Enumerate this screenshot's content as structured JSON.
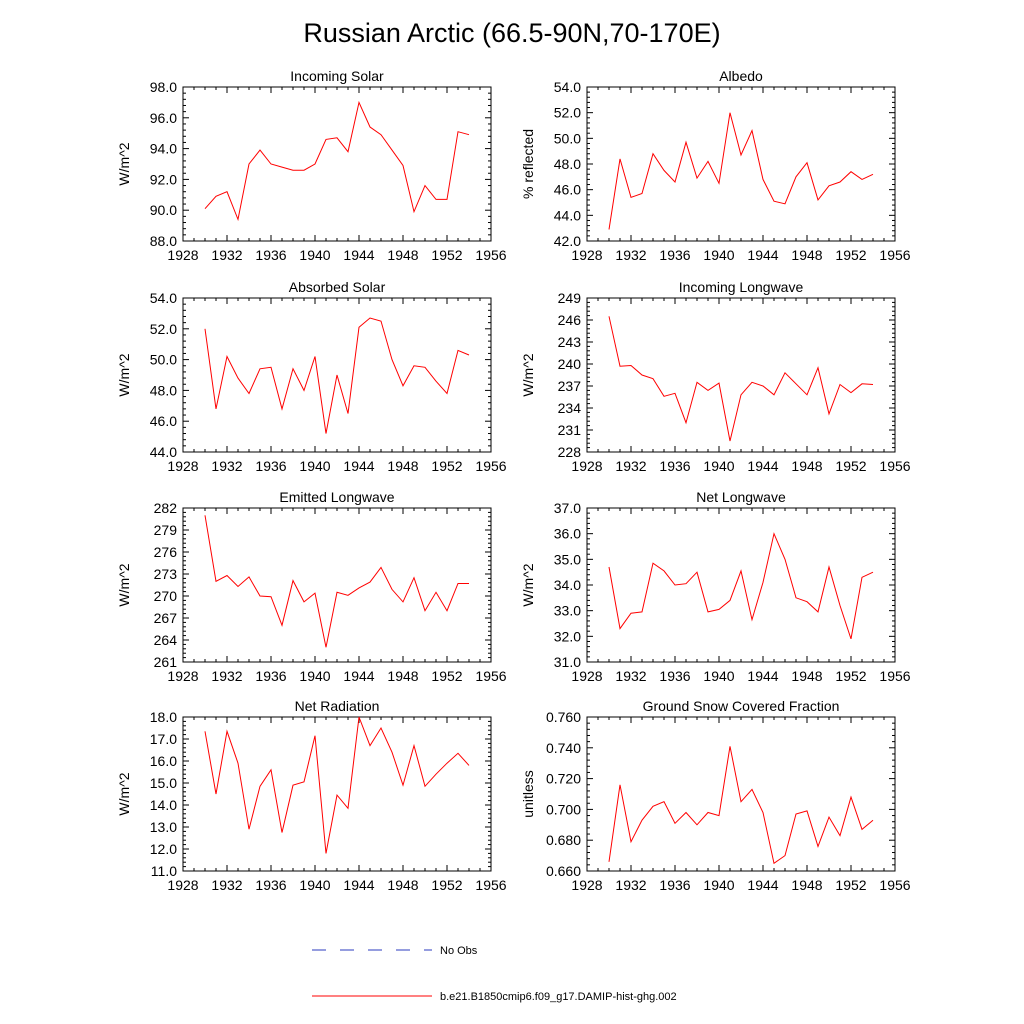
{
  "figure": {
    "title": "Russian Arctic (66.5-90N,70-170E)"
  },
  "legend": {
    "obs_label": "No Obs",
    "model_label": "b.e21.B1850cmip6.f09_g17.DAMIP-hist-ghg.002",
    "obs_color": "#2b3bbf",
    "model_color": "#ff0000"
  },
  "colors": {
    "line": "#ff0000",
    "axis": "#000000"
  },
  "chart_data": [
    {
      "type": "line",
      "title": "Incoming Solar",
      "ylabel": "W/m^2",
      "xlim": [
        1928,
        1956
      ],
      "ylim": [
        88,
        98
      ],
      "xticks": [
        1928,
        1932,
        1936,
        1940,
        1944,
        1948,
        1952,
        1956
      ],
      "yticks": [
        "88.0",
        "90.0",
        "92.0",
        "94.0",
        "96.0",
        "98.0"
      ],
      "series": [
        {
          "x": [
            1930,
            1931,
            1932,
            1933,
            1934,
            1935,
            1936,
            1937,
            1938,
            1939,
            1940,
            1941,
            1942,
            1943,
            1944,
            1945,
            1946,
            1947,
            1948,
            1949,
            1950,
            1951,
            1952,
            1953,
            1954
          ],
          "values": [
            90.1,
            90.9,
            91.2,
            89.4,
            93.0,
            93.9,
            93.0,
            92.8,
            92.6,
            92.6,
            93.0,
            94.6,
            94.7,
            93.8,
            97.0,
            95.4,
            94.9,
            93.9,
            92.9,
            89.9,
            91.6,
            90.7,
            90.7,
            95.1,
            94.9
          ]
        }
      ]
    },
    {
      "type": "line",
      "title": "Albedo",
      "ylabel": "% reflected",
      "xlim": [
        1928,
        1956
      ],
      "ylim": [
        42,
        54
      ],
      "xticks": [
        1928,
        1932,
        1936,
        1940,
        1944,
        1948,
        1952,
        1956
      ],
      "yticks": [
        "42.0",
        "44.0",
        "46.0",
        "48.0",
        "50.0",
        "52.0",
        "54.0"
      ],
      "series": [
        {
          "x": [
            1930,
            1931,
            1932,
            1933,
            1934,
            1935,
            1936,
            1937,
            1938,
            1939,
            1940,
            1941,
            1942,
            1943,
            1944,
            1945,
            1946,
            1947,
            1948,
            1949,
            1950,
            1951,
            1952,
            1953,
            1954
          ],
          "values": [
            42.9,
            48.4,
            45.4,
            45.7,
            48.8,
            47.5,
            46.6,
            49.7,
            46.9,
            48.2,
            46.5,
            52.0,
            48.7,
            50.6,
            46.8,
            45.1,
            44.9,
            47.0,
            48.1,
            45.2,
            46.3,
            46.6,
            47.4,
            46.8,
            47.2
          ]
        }
      ]
    },
    {
      "type": "line",
      "title": "Absorbed Solar",
      "ylabel": "W/m^2",
      "xlim": [
        1928,
        1956
      ],
      "ylim": [
        44,
        54
      ],
      "xticks": [
        1928,
        1932,
        1936,
        1940,
        1944,
        1948,
        1952,
        1956
      ],
      "yticks": [
        "44.0",
        "46.0",
        "48.0",
        "50.0",
        "52.0",
        "54.0"
      ],
      "series": [
        {
          "x": [
            1930,
            1931,
            1932,
            1933,
            1934,
            1935,
            1936,
            1937,
            1938,
            1939,
            1940,
            1941,
            1942,
            1943,
            1944,
            1945,
            1946,
            1947,
            1948,
            1949,
            1950,
            1951,
            1952,
            1953,
            1954
          ],
          "values": [
            52.0,
            46.8,
            50.2,
            48.8,
            47.8,
            49.4,
            49.5,
            46.8,
            49.4,
            48.0,
            50.2,
            45.2,
            49.0,
            46.5,
            52.1,
            52.7,
            52.5,
            50.0,
            48.3,
            49.6,
            49.5,
            48.6,
            47.8,
            50.6,
            50.3
          ]
        }
      ]
    },
    {
      "type": "line",
      "title": "Incoming Longwave",
      "ylabel": "W/m^2",
      "xlim": [
        1928,
        1956
      ],
      "ylim": [
        228,
        249
      ],
      "xticks": [
        1928,
        1932,
        1936,
        1940,
        1944,
        1948,
        1952,
        1956
      ],
      "yticks": [
        "228",
        "231",
        "234",
        "237",
        "240",
        "243",
        "246",
        "249"
      ],
      "series": [
        {
          "x": [
            1930,
            1931,
            1932,
            1933,
            1934,
            1935,
            1936,
            1937,
            1938,
            1939,
            1940,
            1941,
            1942,
            1943,
            1944,
            1945,
            1946,
            1947,
            1948,
            1949,
            1950,
            1951,
            1952,
            1953,
            1954
          ],
          "values": [
            246.5,
            239.7,
            239.8,
            238.5,
            238.0,
            235.6,
            236.0,
            232.0,
            237.5,
            236.4,
            237.4,
            229.5,
            235.8,
            237.5,
            237.0,
            235.8,
            238.8,
            237.3,
            235.8,
            239.5,
            233.2,
            237.2,
            236.1,
            237.3,
            237.2
          ]
        }
      ]
    },
    {
      "type": "line",
      "title": "Emitted Longwave",
      "ylabel": "W/m^2",
      "xlim": [
        1928,
        1956
      ],
      "ylim": [
        261,
        282
      ],
      "xticks": [
        1928,
        1932,
        1936,
        1940,
        1944,
        1948,
        1952,
        1956
      ],
      "yticks": [
        "261",
        "264",
        "267",
        "270",
        "273",
        "276",
        "279",
        "282"
      ],
      "series": [
        {
          "x": [
            1930,
            1931,
            1932,
            1933,
            1934,
            1935,
            1936,
            1937,
            1938,
            1939,
            1940,
            1941,
            1942,
            1943,
            1944,
            1945,
            1946,
            1947,
            1948,
            1949,
            1950,
            1951,
            1952,
            1953,
            1954
          ],
          "values": [
            281.0,
            272.0,
            272.8,
            271.3,
            272.6,
            270.0,
            269.9,
            266.0,
            272.1,
            269.2,
            270.4,
            263.0,
            270.5,
            270.1,
            271.1,
            271.9,
            273.9,
            270.9,
            269.2,
            272.5,
            268.0,
            270.5,
            268.0,
            271.7,
            271.7
          ]
        }
      ]
    },
    {
      "type": "line",
      "title": "Net Longwave",
      "ylabel": "W/m^2",
      "xlim": [
        1928,
        1956
      ],
      "ylim": [
        31,
        37
      ],
      "xticks": [
        1928,
        1932,
        1936,
        1940,
        1944,
        1948,
        1952,
        1956
      ],
      "yticks": [
        "31.0",
        "32.0",
        "33.0",
        "34.0",
        "35.0",
        "36.0",
        "37.0"
      ],
      "series": [
        {
          "x": [
            1930,
            1931,
            1932,
            1933,
            1934,
            1935,
            1936,
            1937,
            1938,
            1939,
            1940,
            1941,
            1942,
            1943,
            1944,
            1945,
            1946,
            1947,
            1948,
            1949,
            1950,
            1951,
            1952,
            1953,
            1954
          ],
          "values": [
            34.7,
            32.3,
            32.9,
            32.95,
            34.85,
            34.55,
            34.0,
            34.05,
            34.5,
            32.95,
            33.05,
            33.4,
            34.55,
            32.65,
            34.1,
            36.0,
            35.0,
            33.5,
            33.35,
            32.95,
            34.7,
            33.2,
            31.9,
            34.3,
            34.5
          ]
        }
      ]
    },
    {
      "type": "line",
      "title": "Net Radiation",
      "ylabel": "W/m^2",
      "xlim": [
        1928,
        1956
      ],
      "ylim": [
        11,
        18
      ],
      "xticks": [
        1928,
        1932,
        1936,
        1940,
        1944,
        1948,
        1952,
        1956
      ],
      "yticks": [
        "11.0",
        "12.0",
        "13.0",
        "14.0",
        "15.0",
        "16.0",
        "17.0",
        "18.0"
      ],
      "series": [
        {
          "x": [
            1930,
            1931,
            1932,
            1933,
            1934,
            1935,
            1936,
            1937,
            1938,
            1939,
            1940,
            1941,
            1942,
            1943,
            1944,
            1945,
            1946,
            1947,
            1948,
            1949,
            1950,
            1951,
            1952,
            1953,
            1954
          ],
          "values": [
            17.35,
            14.5,
            17.35,
            15.9,
            12.9,
            14.85,
            15.6,
            12.75,
            14.9,
            15.05,
            17.15,
            11.8,
            14.45,
            13.85,
            18.0,
            16.7,
            17.5,
            16.4,
            14.9,
            16.7,
            14.85,
            15.4,
            15.9,
            16.35,
            15.8
          ]
        }
      ]
    },
    {
      "type": "line",
      "title": "Ground Snow Covered Fraction",
      "ylabel": "unitless",
      "xlim": [
        1928,
        1956
      ],
      "ylim": [
        0.66,
        0.76
      ],
      "xticks": [
        1928,
        1932,
        1936,
        1940,
        1944,
        1948,
        1952,
        1956
      ],
      "yticks": [
        "0.660",
        "0.680",
        "0.700",
        "0.720",
        "0.740",
        "0.760"
      ],
      "series": [
        {
          "x": [
            1930,
            1931,
            1932,
            1933,
            1934,
            1935,
            1936,
            1937,
            1938,
            1939,
            1940,
            1941,
            1942,
            1943,
            1944,
            1945,
            1946,
            1947,
            1948,
            1949,
            1950,
            1951,
            1952,
            1953,
            1954
          ],
          "values": [
            0.666,
            0.716,
            0.679,
            0.693,
            0.702,
            0.705,
            0.691,
            0.698,
            0.69,
            0.698,
            0.696,
            0.741,
            0.705,
            0.713,
            0.698,
            0.665,
            0.67,
            0.697,
            0.699,
            0.676,
            0.695,
            0.683,
            0.708,
            0.687,
            0.693
          ]
        }
      ]
    }
  ]
}
